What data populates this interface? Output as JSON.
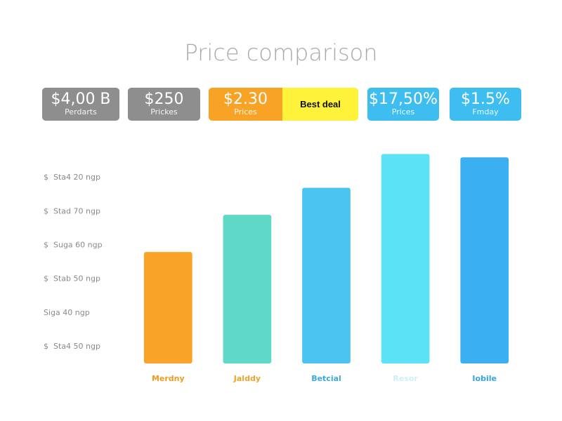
{
  "title": "Price comparison",
  "cards": [
    {
      "value": "$4,00 B",
      "label": "Perdarts",
      "color": "#8e8e8e"
    },
    {
      "value": "$250",
      "label": "Prickes",
      "color": "#8e8e8e"
    },
    {
      "value": "$2.30",
      "label": "Prices",
      "color": "#f9a326",
      "badge": "Best deal",
      "badge_color": "#fff23a"
    },
    {
      "value": "$17,50%",
      "label": "Prices",
      "color": "#3dbdf0"
    },
    {
      "value": "$1.5%",
      "label": "Fmday",
      "color": "#3dbdf0"
    }
  ],
  "chart_data": {
    "type": "bar",
    "categories": [
      "Merdny",
      "Jalddy",
      "Betcial",
      "Resor",
      "Iobile"
    ],
    "values": [
      3.8,
      4.9,
      5.7,
      6.7,
      6.6
    ],
    "colors": [
      "#f9a428",
      "#5fd8c7",
      "#4cc4f1",
      "#5ce2f5",
      "#3ab0f0"
    ],
    "category_colors": [
      "#f39a1e",
      "#f0a12a",
      "#3aa9dc",
      "#cfeef8",
      "#2ea7e8"
    ],
    "ylim": [
      0.5,
      7
    ],
    "yticks": [
      {
        "value": 1,
        "label": "$  Sta4 50 ngp"
      },
      {
        "value": 2,
        "label": "Siga 40 ngp"
      },
      {
        "value": 3,
        "label": "$  Stab 50 ngp"
      },
      {
        "value": 4,
        "label": "$  Suga 60 ngp"
      },
      {
        "value": 5,
        "label": "$  Stad 70 ngp"
      },
      {
        "value": 6,
        "label": "$  Sta4 20 ngp"
      }
    ],
    "grid": false
  }
}
